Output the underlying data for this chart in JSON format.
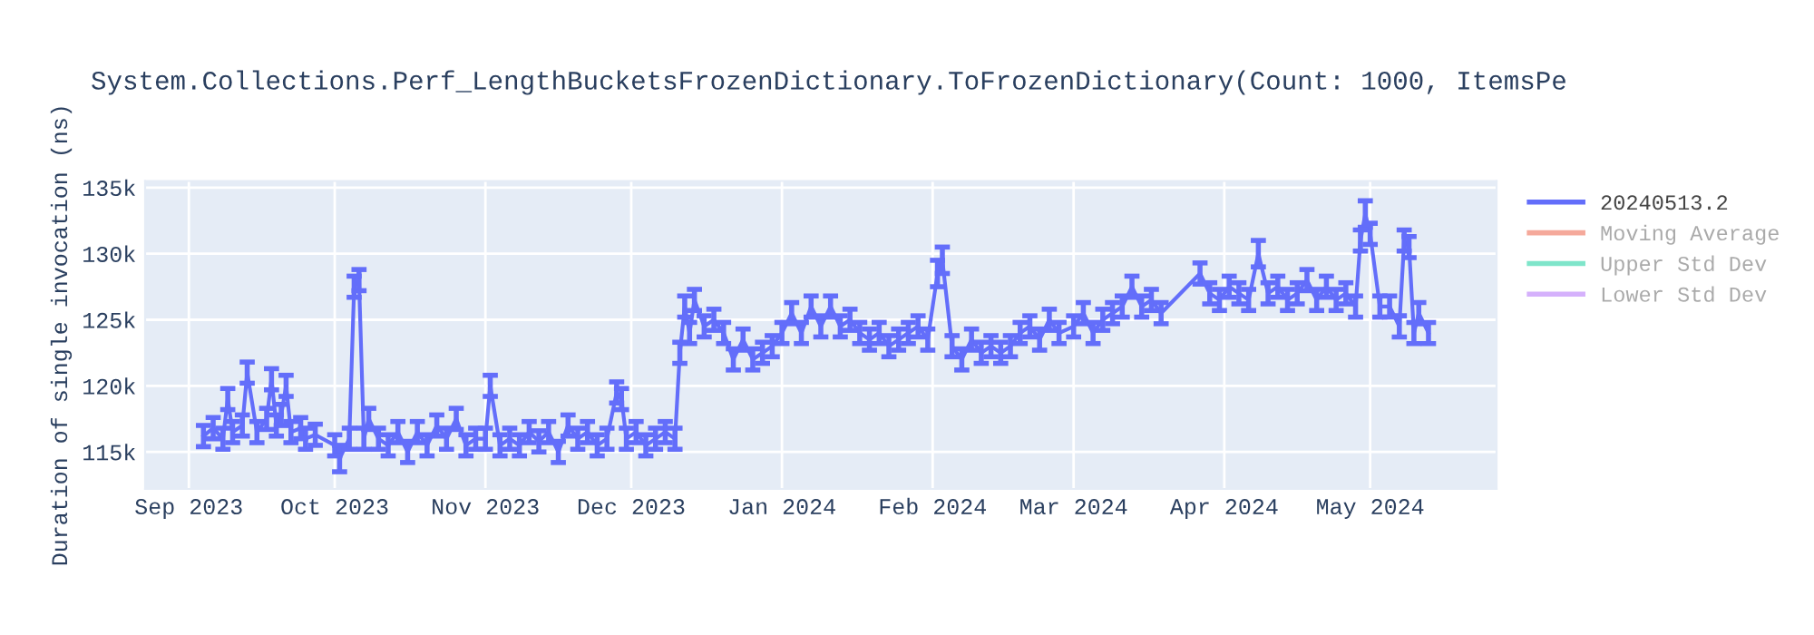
{
  "chart_data": {
    "type": "line",
    "title": "System.Collections.Perf_LengthBucketsFrozenDictionary.ToFrozenDictionary(Count: 1000, ItemsPe",
    "ylabel": "Duration of single invocation (ns)",
    "xlim": [
      "2023-08-23",
      "2024-05-27"
    ],
    "xticks": [
      {
        "value": "2023-09-01",
        "label": "Sep 2023"
      },
      {
        "value": "2023-10-01",
        "label": "Oct 2023"
      },
      {
        "value": "2023-11-01",
        "label": "Nov 2023"
      },
      {
        "value": "2023-12-01",
        "label": "Dec 2023"
      },
      {
        "value": "2024-01-01",
        "label": "Jan 2024"
      },
      {
        "value": "2024-02-01",
        "label": "Feb 2024"
      },
      {
        "value": "2024-03-01",
        "label": "Mar 2024"
      },
      {
        "value": "2024-04-01",
        "label": "Apr 2024"
      },
      {
        "value": "2024-05-01",
        "label": "May 2024"
      }
    ],
    "ylim": [
      112200,
      135500
    ],
    "yticks": [
      {
        "value": 115000,
        "label": "115k"
      },
      {
        "value": 120000,
        "label": "120k"
      },
      {
        "value": 125000,
        "label": "125k"
      },
      {
        "value": 130000,
        "label": "130k"
      },
      {
        "value": 135000,
        "label": "135k"
      }
    ],
    "grid": true,
    "legend": "right",
    "marker": "none",
    "line_style": "solid",
    "series": [
      {
        "name": "20240513.2",
        "color": "#636efa",
        "x": [
          "2023-09-04",
          "2023-09-06",
          "2023-09-08",
          "2023-09-09",
          "2023-09-10",
          "2023-09-12",
          "2023-09-13",
          "2023-09-15",
          "2023-09-17",
          "2023-09-18",
          "2023-09-19",
          "2023-09-20",
          "2023-09-21",
          "2023-09-22",
          "2023-09-24",
          "2023-09-25",
          "2023-09-27",
          "2023-10-01",
          "2023-10-02",
          "2023-10-04",
          "2023-10-05",
          "2023-10-06",
          "2023-10-07",
          "2023-10-08",
          "2023-10-10",
          "2023-10-12",
          "2023-10-14",
          "2023-10-16",
          "2023-10-18",
          "2023-10-20",
          "2023-10-22",
          "2023-10-24",
          "2023-10-26",
          "2023-10-28",
          "2023-10-30",
          "2023-11-01",
          "2023-11-02",
          "2023-11-04",
          "2023-11-06",
          "2023-11-08",
          "2023-11-10",
          "2023-11-12",
          "2023-11-14",
          "2023-11-16",
          "2023-11-18",
          "2023-11-20",
          "2023-11-22",
          "2023-11-24",
          "2023-11-26",
          "2023-11-28",
          "2023-11-29",
          "2023-11-30",
          "2023-12-02",
          "2023-12-04",
          "2023-12-06",
          "2023-12-08",
          "2023-12-10",
          "2023-12-11",
          "2023-12-12",
          "2023-12-13",
          "2023-12-14",
          "2023-12-16",
          "2023-12-18",
          "2023-12-20",
          "2023-12-22",
          "2023-12-24",
          "2023-12-26",
          "2023-12-28",
          "2023-12-30",
          "2024-01-01",
          "2024-01-03",
          "2024-01-05",
          "2024-01-07",
          "2024-01-09",
          "2024-01-11",
          "2024-01-13",
          "2024-01-15",
          "2024-01-17",
          "2024-01-19",
          "2024-01-21",
          "2024-01-23",
          "2024-01-25",
          "2024-01-27",
          "2024-01-29",
          "2024-01-31",
          "2024-02-02",
          "2024-02-03",
          "2024-02-05",
          "2024-02-07",
          "2024-02-09",
          "2024-02-11",
          "2024-02-13",
          "2024-02-15",
          "2024-02-17",
          "2024-02-19",
          "2024-02-21",
          "2024-02-23",
          "2024-02-25",
          "2024-02-27",
          "2024-03-01",
          "2024-03-03",
          "2024-03-05",
          "2024-03-07",
          "2024-03-09",
          "2024-03-11",
          "2024-03-13",
          "2024-03-15",
          "2024-03-17",
          "2024-03-19",
          "2024-03-27",
          "2024-03-29",
          "2024-03-31",
          "2024-04-02",
          "2024-04-04",
          "2024-04-06",
          "2024-04-08",
          "2024-04-10",
          "2024-04-12",
          "2024-04-14",
          "2024-04-16",
          "2024-04-18",
          "2024-04-20",
          "2024-04-22",
          "2024-04-24",
          "2024-04-26",
          "2024-04-28",
          "2024-04-29",
          "2024-04-30",
          "2024-05-01",
          "2024-05-03",
          "2024-05-05",
          "2024-05-07",
          "2024-05-08",
          "2024-05-09",
          "2024-05-10",
          "2024-05-11",
          "2024-05-13"
        ],
        "values": [
          116200,
          116800,
          116000,
          119000,
          116500,
          117000,
          121000,
          116500,
          117500,
          120500,
          117000,
          117800,
          120000,
          116500,
          116800,
          116000,
          116300,
          115500,
          114500,
          116000,
          127500,
          128000,
          116000,
          117500,
          116000,
          115500,
          116500,
          115000,
          116500,
          115500,
          117000,
          116000,
          117500,
          115500,
          116000,
          116000,
          120000,
          115500,
          116000,
          115500,
          116500,
          115800,
          116500,
          115000,
          117000,
          116000,
          116500,
          115500,
          116000,
          119500,
          119000,
          116000,
          116500,
          115500,
          116000,
          116500,
          116000,
          122500,
          126000,
          124000,
          126500,
          124500,
          125000,
          124000,
          122000,
          123500,
          122000,
          122500,
          123000,
          124000,
          125500,
          124000,
          126000,
          124500,
          126000,
          124500,
          125000,
          124000,
          123500,
          124000,
          123000,
          123500,
          124000,
          124500,
          123500,
          128500,
          129500,
          123000,
          122000,
          123500,
          122500,
          123000,
          122500,
          123000,
          124000,
          124500,
          123500,
          125000,
          124000,
          124500,
          125500,
          124000,
          125000,
          125500,
          126000,
          127500,
          126000,
          126500,
          125500,
          128500,
          127000,
          126500,
          127500,
          127000,
          126500,
          130000,
          127000,
          127500,
          126500,
          127000,
          128000,
          126500,
          127500,
          126500,
          127000,
          126000,
          131000,
          133000,
          131500,
          126000,
          126000,
          124500,
          131000,
          130500,
          124000,
          125500,
          124000
        ],
        "errors": [
          800,
          800,
          800,
          800,
          800,
          800,
          800,
          800,
          800,
          800,
          800,
          800,
          800,
          800,
          800,
          800,
          800,
          800,
          1000,
          800,
          800,
          800,
          800,
          800,
          800,
          800,
          800,
          800,
          800,
          800,
          800,
          800,
          800,
          800,
          800,
          800,
          800,
          800,
          800,
          800,
          800,
          800,
          800,
          800,
          800,
          800,
          800,
          800,
          800,
          800,
          800,
          800,
          800,
          800,
          800,
          800,
          800,
          800,
          800,
          800,
          800,
          800,
          800,
          800,
          800,
          800,
          800,
          800,
          800,
          800,
          800,
          800,
          800,
          800,
          800,
          800,
          800,
          800,
          800,
          800,
          800,
          800,
          800,
          800,
          800,
          1000,
          1000,
          800,
          800,
          800,
          800,
          800,
          800,
          800,
          800,
          800,
          800,
          800,
          800,
          800,
          800,
          800,
          800,
          800,
          800,
          800,
          800,
          800,
          800,
          800,
          800,
          800,
          800,
          800,
          800,
          1000,
          800,
          800,
          800,
          800,
          800,
          800,
          800,
          800,
          800,
          800,
          800,
          1000,
          800,
          800,
          800,
          800,
          800,
          800,
          800,
          800,
          800
        ]
      },
      {
        "name": "Moving Average",
        "color": "#f5a99b"
      },
      {
        "name": "Upper Std Dev",
        "color": "#7fe5ca"
      },
      {
        "name": "Lower Std Dev",
        "color": "#d5b1fc"
      }
    ]
  }
}
